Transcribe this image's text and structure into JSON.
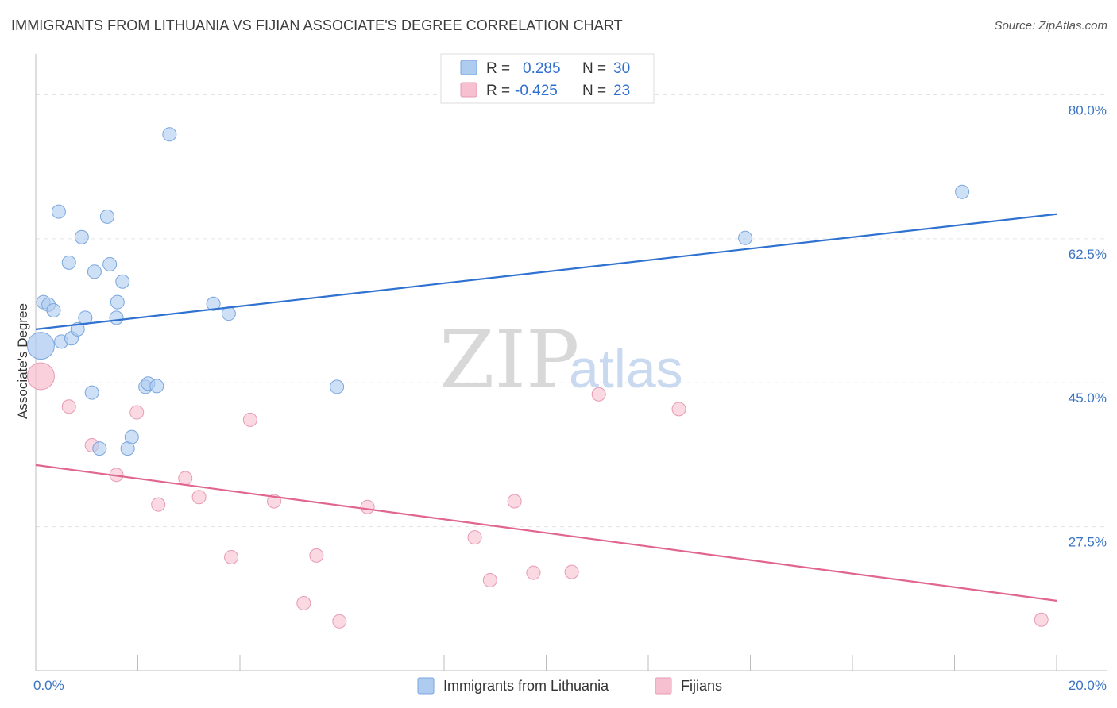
{
  "title": "IMMIGRANTS FROM LITHUANIA VS FIJIAN ASSOCIATE'S DEGREE CORRELATION CHART",
  "source": "Source: ZipAtlas.com",
  "watermark": {
    "zip": "ZIP",
    "atlas": "atlas"
  },
  "colors": {
    "blue_fill": "#aecbf0",
    "blue_stroke": "#7aa6de",
    "blue_line": "#2f72d0",
    "pink_fill": "#f7c0d0",
    "pink_stroke": "#e79ab3",
    "pink_line": "#e0668f",
    "axis_text": "#3b74c4",
    "grid": "#e3e3e3"
  },
  "legend": {
    "rows": [
      {
        "r_label": "R =",
        "r_value": "0.285",
        "n_label": "N =",
        "n_value": "30"
      },
      {
        "r_label": "R =",
        "r_value": "-0.425",
        "n_label": "N =",
        "n_value": "23"
      }
    ]
  },
  "chart_data": {
    "type": "scatter",
    "title": "IMMIGRANTS FROM LITHUANIA VS FIJIAN ASSOCIATE'S DEGREE CORRELATION CHART",
    "xlabel": "",
    "ylabel": "Associate's Degree",
    "xlim": [
      0,
      20
    ],
    "ylim": [
      10,
      84
    ],
    "x_ticks": [
      {
        "v": 0,
        "label": "0.0%"
      },
      {
        "v": 20,
        "label": "20.0%"
      }
    ],
    "y_ticks": [
      {
        "v": 80,
        "label": "80.0%"
      },
      {
        "v": 62.5,
        "label": "62.5%"
      },
      {
        "v": 45,
        "label": "45.0%"
      },
      {
        "v": 27.5,
        "label": "27.5%"
      }
    ],
    "grid": "horizontal dashed",
    "legend_placement": "bottom-center",
    "series": [
      {
        "name": "Immigrants from Lithuania",
        "color": "blue",
        "trend": {
          "x": [
            0,
            20
          ],
          "y": [
            51.5,
            65.5
          ]
        },
        "points": [
          {
            "x": 0.1,
            "y": 49.5,
            "big": true
          },
          {
            "x": 0.15,
            "y": 54.8
          },
          {
            "x": 0.25,
            "y": 54.5
          },
          {
            "x": 0.35,
            "y": 53.8
          },
          {
            "x": 0.45,
            "y": 65.8
          },
          {
            "x": 0.5,
            "y": 50.0
          },
          {
            "x": 0.65,
            "y": 59.6
          },
          {
            "x": 0.7,
            "y": 50.4
          },
          {
            "x": 0.82,
            "y": 51.5
          },
          {
            "x": 0.9,
            "y": 62.7
          },
          {
            "x": 0.97,
            "y": 52.9
          },
          {
            "x": 1.1,
            "y": 43.8
          },
          {
            "x": 1.15,
            "y": 58.5
          },
          {
            "x": 1.25,
            "y": 37.0
          },
          {
            "x": 1.4,
            "y": 65.2
          },
          {
            "x": 1.45,
            "y": 59.4
          },
          {
            "x": 1.58,
            "y": 52.9
          },
          {
            "x": 1.6,
            "y": 54.8
          },
          {
            "x": 1.7,
            "y": 57.3
          },
          {
            "x": 1.8,
            "y": 37.0
          },
          {
            "x": 1.88,
            "y": 38.4
          },
          {
            "x": 2.15,
            "y": 44.5
          },
          {
            "x": 2.2,
            "y": 44.9
          },
          {
            "x": 2.37,
            "y": 44.6
          },
          {
            "x": 2.62,
            "y": 75.2
          },
          {
            "x": 3.48,
            "y": 54.6
          },
          {
            "x": 3.78,
            "y": 53.4
          },
          {
            "x": 5.9,
            "y": 44.5
          },
          {
            "x": 13.9,
            "y": 62.6
          },
          {
            "x": 18.15,
            "y": 68.2
          }
        ]
      },
      {
        "name": "Fijians",
        "color": "pink",
        "trend": {
          "x": [
            0,
            20
          ],
          "y": [
            35.0,
            18.5
          ]
        },
        "points": [
          {
            "x": 0.1,
            "y": 45.8,
            "big": true
          },
          {
            "x": 0.65,
            "y": 42.1
          },
          {
            "x": 1.1,
            "y": 37.4
          },
          {
            "x": 1.58,
            "y": 33.8
          },
          {
            "x": 1.98,
            "y": 41.4
          },
          {
            "x": 2.4,
            "y": 30.2
          },
          {
            "x": 2.93,
            "y": 33.4
          },
          {
            "x": 3.2,
            "y": 31.1
          },
          {
            "x": 3.83,
            "y": 23.8
          },
          {
            "x": 4.2,
            "y": 40.5
          },
          {
            "x": 4.67,
            "y": 30.6
          },
          {
            "x": 5.25,
            "y": 18.2
          },
          {
            "x": 5.5,
            "y": 24.0
          },
          {
            "x": 5.95,
            "y": 16.0
          },
          {
            "x": 6.5,
            "y": 29.9
          },
          {
            "x": 8.6,
            "y": 26.2
          },
          {
            "x": 8.9,
            "y": 21.0
          },
          {
            "x": 9.38,
            "y": 30.6
          },
          {
            "x": 9.75,
            "y": 21.9
          },
          {
            "x": 10.5,
            "y": 22.0
          },
          {
            "x": 11.03,
            "y": 43.6
          },
          {
            "x": 12.6,
            "y": 41.8
          },
          {
            "x": 19.7,
            "y": 16.2
          }
        ]
      }
    ]
  }
}
